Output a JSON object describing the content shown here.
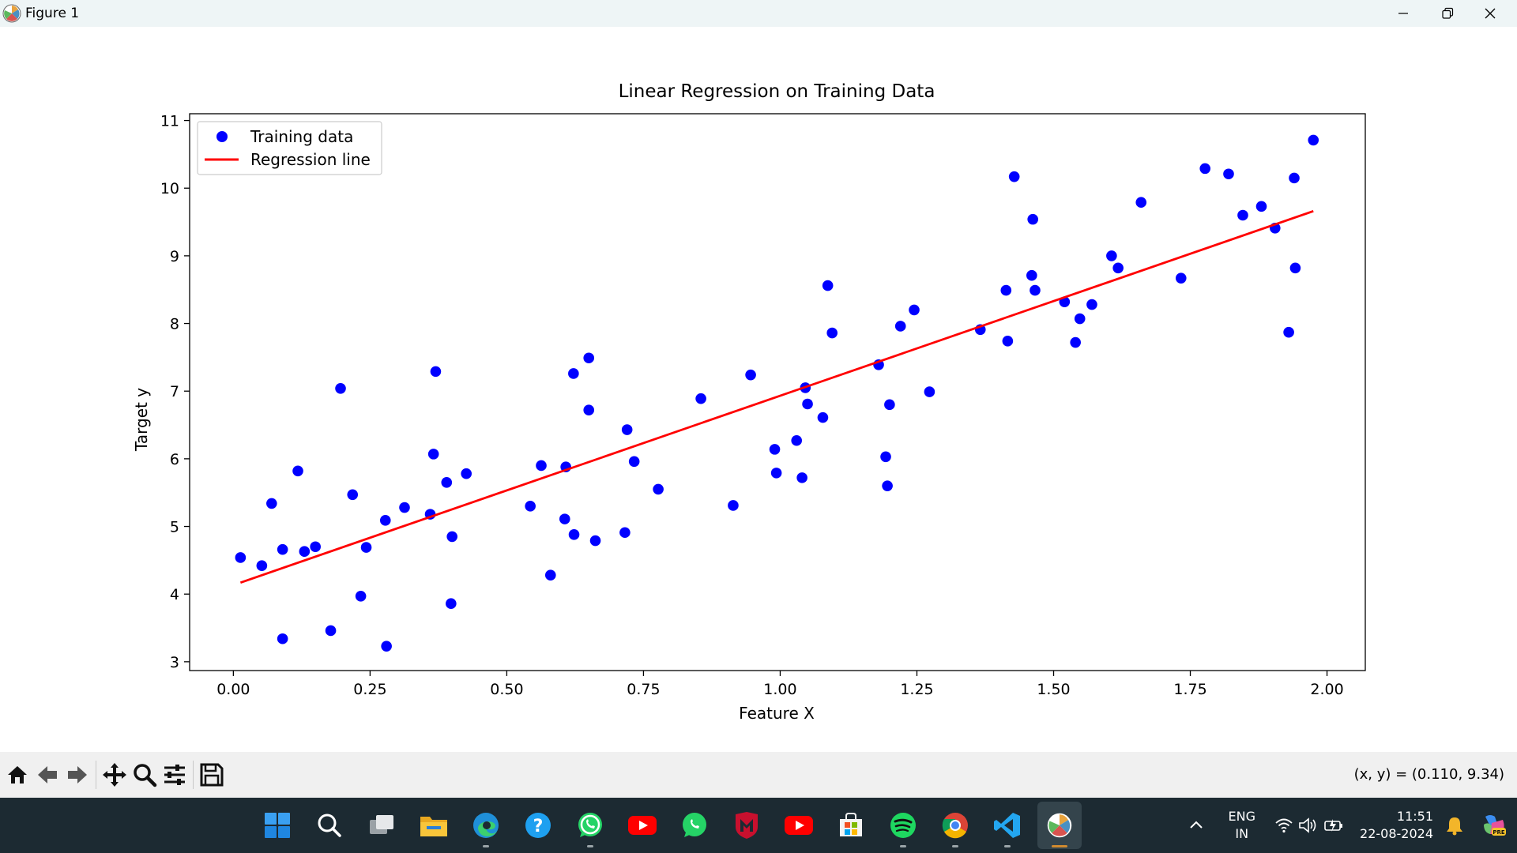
{
  "window": {
    "title": "Figure 1",
    "app_icon": "matplotlib-icon",
    "controls": [
      "minimize-icon",
      "restore-icon",
      "close-icon"
    ]
  },
  "chart_data": {
    "type": "scatter",
    "title": "Linear Regression on Training Data",
    "xlabel": "Feature X",
    "ylabel": "Target y",
    "xlim": [
      -0.08,
      2.07
    ],
    "ylim": [
      2.87,
      11.1
    ],
    "xticks": [
      "0.00",
      "0.25",
      "0.50",
      "0.75",
      "1.00",
      "1.25",
      "1.50",
      "1.75",
      "2.00"
    ],
    "yticks": [
      "3",
      "4",
      "5",
      "6",
      "7",
      "8",
      "9",
      "10",
      "11"
    ],
    "grid": false,
    "legend_position": "upper-left",
    "legend": [
      {
        "label": "Training data",
        "type": "marker",
        "color": "#0000ff"
      },
      {
        "label": "Regression line",
        "type": "line",
        "color": "#ff0000"
      }
    ],
    "series": [
      {
        "name": "Training data",
        "kind": "scatter",
        "color": "#0000ff",
        "points": [
          [
            0.013,
            4.54
          ],
          [
            0.052,
            4.42
          ],
          [
            0.07,
            5.34
          ],
          [
            0.09,
            4.66
          ],
          [
            0.09,
            3.34
          ],
          [
            0.118,
            5.82
          ],
          [
            0.13,
            4.63
          ],
          [
            0.15,
            4.7
          ],
          [
            0.178,
            3.46
          ],
          [
            0.196,
            7.04
          ],
          [
            0.218,
            5.47
          ],
          [
            0.233,
            3.97
          ],
          [
            0.243,
            4.69
          ],
          [
            0.278,
            5.09
          ],
          [
            0.28,
            3.23
          ],
          [
            0.313,
            5.28
          ],
          [
            0.36,
            5.18
          ],
          [
            0.366,
            6.07
          ],
          [
            0.37,
            7.29
          ],
          [
            0.39,
            5.65
          ],
          [
            0.398,
            3.86
          ],
          [
            0.4,
            4.85
          ],
          [
            0.426,
            5.78
          ],
          [
            0.543,
            5.3
          ],
          [
            0.563,
            5.9
          ],
          [
            0.58,
            4.28
          ],
          [
            0.606,
            5.11
          ],
          [
            0.608,
            5.88
          ],
          [
            0.622,
            7.26
          ],
          [
            0.623,
            4.88
          ],
          [
            0.65,
            7.49
          ],
          [
            0.65,
            6.72
          ],
          [
            0.662,
            4.79
          ],
          [
            0.716,
            4.91
          ],
          [
            0.72,
            6.43
          ],
          [
            0.733,
            5.96
          ],
          [
            0.777,
            5.55
          ],
          [
            0.855,
            6.89
          ],
          [
            0.914,
            5.31
          ],
          [
            0.946,
            7.24
          ],
          [
            0.99,
            6.14
          ],
          [
            0.993,
            5.79
          ],
          [
            1.03,
            6.27
          ],
          [
            1.04,
            5.72
          ],
          [
            1.046,
            7.05
          ],
          [
            1.05,
            6.81
          ],
          [
            1.078,
            6.61
          ],
          [
            1.087,
            8.56
          ],
          [
            1.095,
            7.86
          ],
          [
            1.18,
            7.39
          ],
          [
            1.193,
            6.03
          ],
          [
            1.196,
            5.6
          ],
          [
            1.2,
            6.8
          ],
          [
            1.22,
            7.96
          ],
          [
            1.245,
            8.2
          ],
          [
            1.273,
            6.99
          ],
          [
            1.366,
            7.91
          ],
          [
            1.413,
            8.49
          ],
          [
            1.416,
            7.74
          ],
          [
            1.428,
            10.17
          ],
          [
            1.46,
            8.71
          ],
          [
            1.462,
            9.54
          ],
          [
            1.466,
            8.49
          ],
          [
            1.52,
            8.32
          ],
          [
            1.54,
            7.72
          ],
          [
            1.548,
            8.07
          ],
          [
            1.57,
            8.28
          ],
          [
            1.606,
            9.0
          ],
          [
            1.618,
            8.82
          ],
          [
            1.66,
            9.79
          ],
          [
            1.733,
            8.67
          ],
          [
            1.777,
            10.29
          ],
          [
            1.82,
            10.21
          ],
          [
            1.846,
            9.6
          ],
          [
            1.88,
            9.73
          ],
          [
            1.905,
            9.41
          ],
          [
            1.93,
            7.87
          ],
          [
            1.94,
            10.15
          ],
          [
            1.942,
            8.82
          ],
          [
            1.975,
            10.71
          ]
        ]
      },
      {
        "name": "Regression line",
        "kind": "line",
        "color": "#ff0000",
        "points": [
          [
            0.013,
            4.17
          ],
          [
            1.975,
            9.66
          ]
        ]
      }
    ]
  },
  "toolbar": {
    "buttons": [
      {
        "name": "home-icon"
      },
      {
        "name": "back-icon"
      },
      {
        "name": "forward-icon"
      },
      {
        "name": "pan-icon"
      },
      {
        "name": "zoom-icon"
      },
      {
        "name": "configure-subplots-icon"
      },
      {
        "name": "save-icon"
      }
    ],
    "coords": "(x, y) = (0.110, 9.34)"
  },
  "taskbar": {
    "apps": [
      {
        "name": "windows-start-icon",
        "running": false
      },
      {
        "name": "search-icon",
        "running": false
      },
      {
        "name": "task-view-icon",
        "running": false
      },
      {
        "name": "file-explorer-icon",
        "running": false
      },
      {
        "name": "edge-browser-icon",
        "running": true
      },
      {
        "name": "help-icon",
        "running": false
      },
      {
        "name": "whatsapp-icon",
        "running": true
      },
      {
        "name": "youtube-icon",
        "running": false
      },
      {
        "name": "whatsapp-icon",
        "running": false
      },
      {
        "name": "mcafee-icon",
        "running": false
      },
      {
        "name": "youtube-icon",
        "running": false
      },
      {
        "name": "microsoft-store-icon",
        "running": false
      },
      {
        "name": "spotify-icon",
        "running": true
      },
      {
        "name": "chrome-icon",
        "running": true
      },
      {
        "name": "vscode-icon",
        "running": true
      },
      {
        "name": "matplotlib-icon",
        "running": true,
        "active": true
      }
    ],
    "tray": {
      "lang_line1": "ENG",
      "lang_line2": "IN",
      "time": "11:51",
      "date": "22-08-2024",
      "icons": [
        "chevron-up-icon",
        "wifi-icon",
        "volume-icon",
        "battery-icon",
        "notification-bell-icon",
        "copilot-icon"
      ]
    }
  },
  "colors": {
    "titlebar": "#eef5f6",
    "toolbar": "#f0f0f0",
    "taskbar": "#1c2a32",
    "scatter": "#0000ff",
    "line": "#ff0000"
  }
}
